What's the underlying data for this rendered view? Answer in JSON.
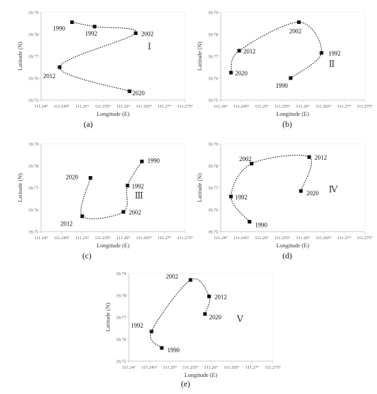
{
  "chart_data": [
    {
      "type": "line",
      "panel_label": "(a)",
      "zone": "Ⅰ",
      "xlabel": "Longitude (E)",
      "ylabel": "Latitude (N)",
      "xlim": [
        111.24,
        111.275
      ],
      "ylim": [
        39.75,
        39.79
      ],
      "xticks": [
        "111.24°",
        "111.245°",
        "111.25°",
        "111.255°",
        "111.26°",
        "111.265°",
        "111.27°",
        "111.275°"
      ],
      "yticks": [
        "39.75",
        "39.76",
        "39.77",
        "39.78",
        "39.79"
      ],
      "series": [
        {
          "points": [
            {
              "label": "1990",
              "x": 111.2475,
              "y": 39.7855
            },
            {
              "label": "1992",
              "x": 111.253,
              "y": 39.7835
            },
            {
              "label": "2002",
              "x": 111.263,
              "y": 39.7805
            },
            {
              "label": "2012",
              "x": 111.2445,
              "y": 39.765
            },
            {
              "label": "2020",
              "x": 111.2615,
              "y": 39.754
            }
          ]
        }
      ]
    },
    {
      "type": "line",
      "panel_label": "(b)",
      "zone": "Ⅱ",
      "xlabel": "Longitude (E)",
      "ylabel": "Latitude (N)",
      "xlim": [
        111.24,
        111.275
      ],
      "ylim": [
        39.75,
        39.79
      ],
      "xticks": [
        "111.24°",
        "111.245°",
        "111.25°",
        "111.255°",
        "111.26°",
        "111.265°",
        "111.27°",
        "111.275°"
      ],
      "yticks": [
        "39.75",
        "39.76",
        "39.77",
        "39.78",
        "39.79"
      ],
      "series": [
        {
          "points": [
            {
              "label": "1990",
              "x": 111.257,
              "y": 39.76
            },
            {
              "label": "1992",
              "x": 111.2645,
              "y": 39.7715
            },
            {
              "label": "2002",
              "x": 111.259,
              "y": 39.7855
            },
            {
              "label": "2012",
              "x": 111.2445,
              "y": 39.7725
            },
            {
              "label": "2020",
              "x": 111.2425,
              "y": 39.7625
            }
          ]
        }
      ]
    },
    {
      "type": "line",
      "panel_label": "(c)",
      "zone": "Ⅲ",
      "xlabel": "Longitude (E)",
      "ylabel": "Latitude (N)",
      "xlim": [
        111.24,
        111.275
      ],
      "ylim": [
        39.75,
        39.79
      ],
      "xticks": [
        "111.24°",
        "111.245°",
        "111.25°",
        "111.255°",
        "111.26°",
        "111.265°",
        "111.27°",
        "111.275°"
      ],
      "yticks": [
        "39.75",
        "39.76",
        "39.77",
        "39.78",
        "39.79"
      ],
      "series": [
        {
          "points": [
            {
              "label": "1990",
              "x": 111.2645,
              "y": 39.782
            },
            {
              "label": "1992",
              "x": 111.261,
              "y": 39.771
            },
            {
              "label": "2002",
              "x": 111.26,
              "y": 39.759
            },
            {
              "label": "2012",
              "x": 111.25,
              "y": 39.757
            },
            {
              "label": "2020",
              "x": 111.252,
              "y": 39.7745
            }
          ]
        }
      ]
    },
    {
      "type": "line",
      "panel_label": "(d)",
      "zone": "Ⅳ",
      "xlabel": "Longitude (E)",
      "ylabel": "Latitude (N)",
      "xlim": [
        111.24,
        111.275
      ],
      "ylim": [
        39.75,
        39.79
      ],
      "xticks": [
        "111.24°",
        "111.245°",
        "111.25°",
        "111.255°",
        "111.26°",
        "111.265°",
        "111.27°",
        "111.275°"
      ],
      "yticks": [
        "39.75",
        "39.76",
        "39.77",
        "39.78",
        "39.79"
      ],
      "series": [
        {
          "points": [
            {
              "label": "1990",
              "x": 111.247,
              "y": 39.7545
            },
            {
              "label": "1992",
              "x": 111.2425,
              "y": 39.766
            },
            {
              "label": "2002",
              "x": 111.2475,
              "y": 39.781
            },
            {
              "label": "2012",
              "x": 111.2615,
              "y": 39.784
            },
            {
              "label": "2020",
              "x": 111.2595,
              "y": 39.7685
            }
          ]
        }
      ]
    },
    {
      "type": "line",
      "panel_label": "(e)",
      "zone": "Ⅴ",
      "xlabel": "Longitude (E)",
      "ylabel": "Latitude (N)",
      "xlim": [
        111.24,
        111.275
      ],
      "ylim": [
        39.75,
        39.79
      ],
      "xticks": [
        "111.24°",
        "111.245°",
        "111.25°",
        "111.255°",
        "111.26°",
        "111.265°",
        "111.27°",
        "111.275°"
      ],
      "yticks": [
        "39.75",
        "39.76",
        "39.77",
        "39.78",
        "39.79"
      ],
      "series": [
        {
          "points": [
            {
              "label": "1990",
              "x": 111.248,
              "y": 39.756
            },
            {
              "label": "1992",
              "x": 111.2455,
              "y": 39.7635
            },
            {
              "label": "2002",
              "x": 111.255,
              "y": 39.787
            },
            {
              "label": "2012",
              "x": 111.2595,
              "y": 39.7795
            },
            {
              "label": "2020",
              "x": 111.2585,
              "y": 39.7715
            }
          ]
        }
      ]
    }
  ]
}
